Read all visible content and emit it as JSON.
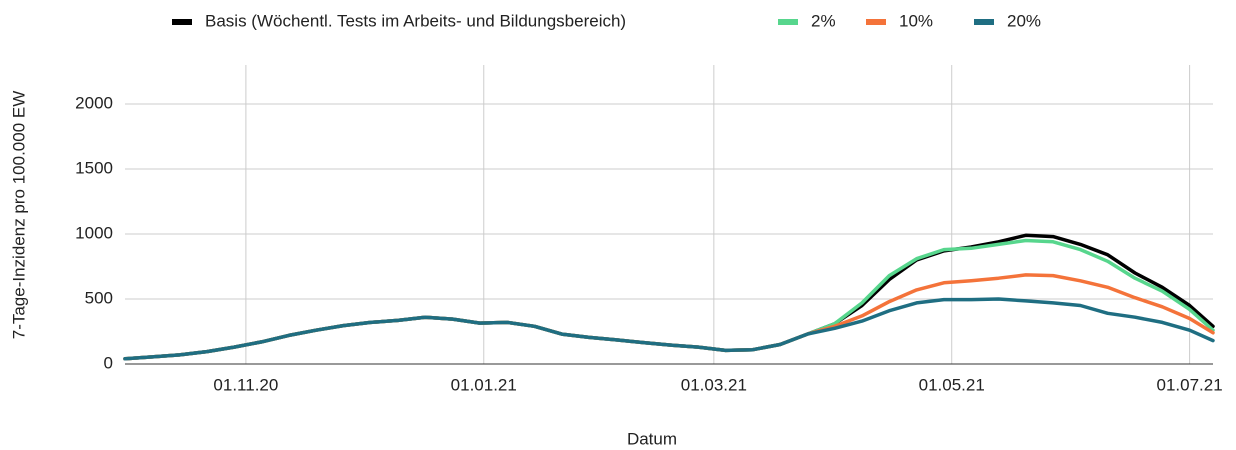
{
  "chart_data": {
    "type": "line",
    "x_label": "Datum",
    "y_label": "7-Tage-Inzidenz pro 100.000 EW",
    "x": [
      "01.10.20",
      "08.10.20",
      "15.10.20",
      "22.10.20",
      "29.10.20",
      "05.11.20",
      "12.11.20",
      "19.11.20",
      "26.11.20",
      "03.12.20",
      "10.12.20",
      "17.12.20",
      "24.12.20",
      "31.12.20",
      "07.01.21",
      "14.01.21",
      "21.01.21",
      "28.01.21",
      "04.02.21",
      "11.02.21",
      "18.02.21",
      "25.02.21",
      "04.03.21",
      "11.03.21",
      "18.03.21",
      "25.03.21",
      "01.04.21",
      "08.04.21",
      "15.04.21",
      "22.04.21",
      "29.04.21",
      "06.05.21",
      "13.05.21",
      "20.05.21",
      "27.05.21",
      "03.06.21",
      "10.06.21",
      "17.06.21",
      "24.06.21",
      "01.07.21",
      "07.07.21"
    ],
    "xlim": [
      "01.10.20",
      "07.07.21"
    ],
    "xticks": [
      "01.11.20",
      "01.01.21",
      "01.03.21",
      "01.05.21",
      "01.07.21"
    ],
    "ylim": [
      0,
      2300
    ],
    "yticks": [
      0,
      500,
      1000,
      1500,
      2000
    ],
    "grid": true,
    "legend": "top",
    "series": [
      {
        "name": "Basis (Wöchentl. Tests im Arbeits- und Bildungsbereich)",
        "color": "#000000",
        "values": [
          40,
          55,
          70,
          95,
          130,
          170,
          220,
          260,
          295,
          320,
          335,
          360,
          345,
          315,
          320,
          290,
          230,
          205,
          185,
          165,
          145,
          130,
          105,
          110,
          150,
          230,
          310,
          450,
          650,
          800,
          870,
          900,
          940,
          990,
          980,
          920,
          840,
          700,
          590,
          450,
          290
        ]
      },
      {
        "name": "2%",
        "color": "#57d68d",
        "values": [
          40,
          55,
          70,
          95,
          130,
          170,
          220,
          260,
          295,
          320,
          335,
          360,
          345,
          315,
          320,
          290,
          230,
          205,
          185,
          165,
          145,
          130,
          105,
          110,
          150,
          230,
          310,
          470,
          680,
          810,
          880,
          890,
          920,
          950,
          940,
          880,
          790,
          660,
          560,
          420,
          260
        ]
      },
      {
        "name": "10%",
        "color": "#f4733a",
        "values": [
          40,
          55,
          70,
          95,
          130,
          170,
          220,
          260,
          295,
          320,
          335,
          360,
          345,
          315,
          320,
          290,
          230,
          205,
          185,
          165,
          145,
          130,
          105,
          110,
          150,
          230,
          290,
          370,
          480,
          570,
          625,
          640,
          660,
          685,
          680,
          640,
          590,
          510,
          440,
          350,
          240
        ]
      },
      {
        "name": "20%",
        "color": "#1f6e82",
        "values": [
          40,
          55,
          70,
          95,
          130,
          170,
          220,
          260,
          295,
          320,
          335,
          360,
          345,
          315,
          320,
          290,
          230,
          205,
          185,
          165,
          145,
          130,
          105,
          110,
          150,
          230,
          275,
          330,
          410,
          470,
          495,
          495,
          500,
          485,
          470,
          450,
          390,
          360,
          320,
          260,
          180
        ]
      }
    ]
  }
}
